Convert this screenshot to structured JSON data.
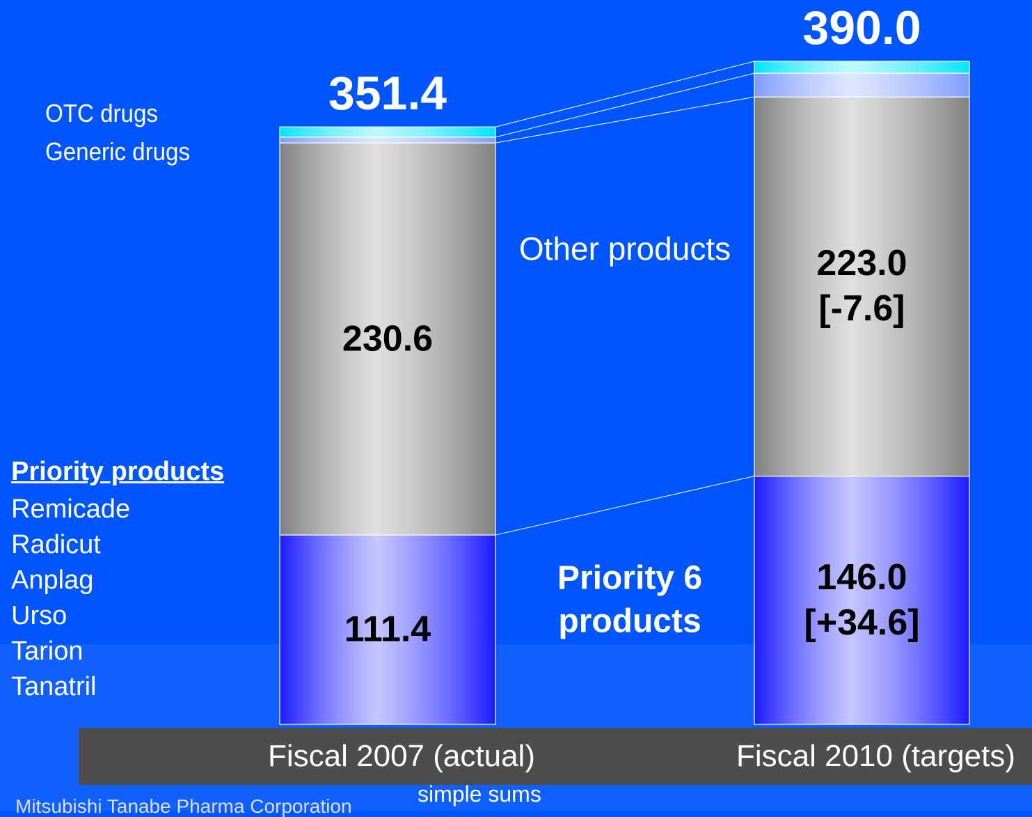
{
  "chart_data": {
    "type": "stacked_bar",
    "categories": [
      "Fiscal 2007 (actual)",
      "Fiscal 2010 (targets)"
    ],
    "ylim": [
      0,
      390
    ],
    "series": [
      {
        "name": "Priority 6 products",
        "color": "#1a1aff",
        "values": [
          111.4,
          146.0
        ],
        "value_labels": [
          "111.4",
          "146.0"
        ],
        "change_labels": [
          null,
          "[+34.6]"
        ]
      },
      {
        "name": "Other products",
        "color": "#808080",
        "values": [
          230.6,
          223.0
        ],
        "value_labels": [
          "230.6",
          "223.0"
        ],
        "change_labels": [
          null,
          "[-7.6]"
        ]
      },
      {
        "name": "Generic drugs",
        "color": "#7f9cff",
        "values": [
          3.4,
          14.0
        ]
      },
      {
        "name": "OTC drugs",
        "color": "#00e5ff",
        "values": [
          6.0,
          7.0
        ]
      }
    ],
    "totals": [
      351.4,
      390.0
    ],
    "total_labels": [
      "351.4",
      "390.0"
    ],
    "priority_list": {
      "title": "Priority products",
      "items": [
        "Remicade",
        "Radicut",
        "Anplag",
        "Urso",
        "Tarion",
        "Tanatril"
      ]
    },
    "note": "simple sums",
    "footer": "Mitsubishi Tanabe Pharma Corporation"
  }
}
